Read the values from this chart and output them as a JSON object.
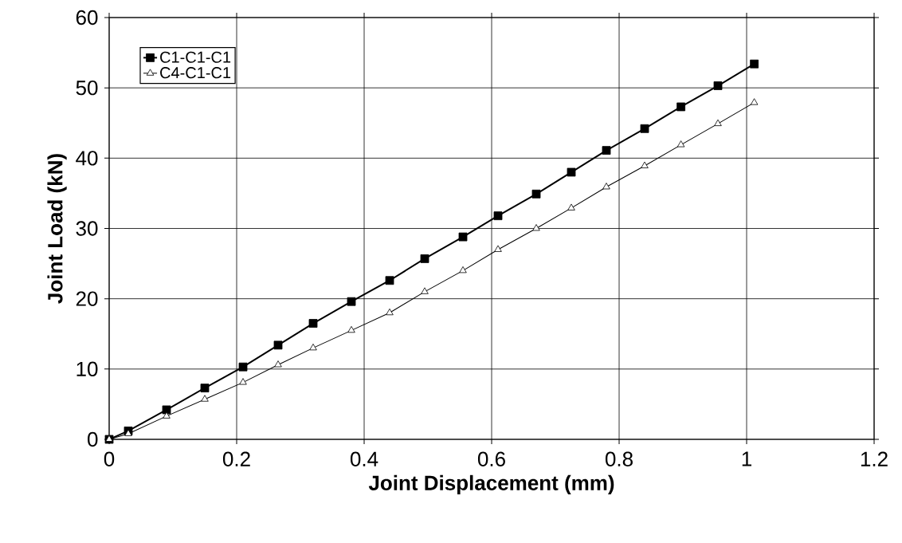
{
  "chart_data": {
    "type": "line",
    "xlabel": "Joint Displacement (mm)",
    "ylabel": "Joint Load (kN)",
    "xlim": [
      0,
      1.2
    ],
    "xticks": [
      0,
      0.2,
      0.4,
      0.6,
      0.8,
      1,
      1.2
    ],
    "ylim": [
      0,
      60
    ],
    "yticks": [
      0,
      10,
      20,
      30,
      40,
      50,
      60
    ],
    "grid": true,
    "legend": "top left",
    "series": [
      {
        "name": "C1-C1-C1",
        "color": "#000000",
        "marker": "square",
        "x": [
          0,
          0.03,
          0.09,
          0.15,
          0.21,
          0.265,
          0.32,
          0.38,
          0.44,
          0.495,
          0.555,
          0.61,
          0.67,
          0.725,
          0.78,
          0.84,
          0.897,
          0.955,
          1.012
        ],
        "values": [
          0,
          1.2,
          4.2,
          7.3,
          10.3,
          13.4,
          16.5,
          19.6,
          22.6,
          25.7,
          28.8,
          31.8,
          34.9,
          38.0,
          41.1,
          44.2,
          47.3,
          50.3,
          53.4
        ]
      },
      {
        "name": "C4-C1-C1",
        "color": "#000000",
        "marker": "triangle",
        "x": [
          0,
          0.03,
          0.09,
          0.15,
          0.21,
          0.265,
          0.32,
          0.38,
          0.44,
          0.495,
          0.555,
          0.61,
          0.67,
          0.725,
          0.78,
          0.84,
          0.897,
          0.955,
          1.012
        ],
        "values": [
          0,
          0.8,
          3.3,
          5.7,
          8.1,
          10.6,
          13.0,
          15.5,
          18.0,
          21.0,
          24.0,
          27.0,
          30.0,
          32.9,
          35.9,
          38.9,
          41.9,
          44.9,
          47.9
        ]
      }
    ]
  }
}
